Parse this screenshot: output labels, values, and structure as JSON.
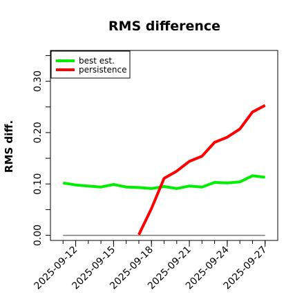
{
  "chart_data": {
    "type": "line",
    "title": "RMS difference",
    "xlabel": "",
    "ylabel": "RMS diff.",
    "x": [
      "2025-09-11",
      "2025-09-12",
      "2025-09-13",
      "2025-09-14",
      "2025-09-15",
      "2025-09-16",
      "2025-09-17",
      "2025-09-18",
      "2025-09-19",
      "2025-09-20",
      "2025-09-21",
      "2025-09-22",
      "2025-09-23",
      "2025-09-24",
      "2025-09-25",
      "2025-09-26",
      "2025-09-27"
    ],
    "xticks": [
      "2025-09-12",
      "2025-09-15",
      "2025-09-18",
      "2025-09-21",
      "2025-09-24",
      "2025-09-27"
    ],
    "xlim": [
      "2025-09-10",
      "2025-09-28"
    ],
    "yticks": [
      0.0,
      0.1,
      0.2,
      0.3
    ],
    "yticks_minor": [
      0.05,
      0.15,
      0.25,
      0.35
    ],
    "ylim": [
      -0.01,
      0.36
    ],
    "grid": false,
    "legend_position": "top-left",
    "reference_line": {
      "value": 0.0,
      "color": "#777777"
    },
    "series": [
      {
        "name": "best est.",
        "color": "#00ee00",
        "values": [
          0.102,
          0.098,
          0.096,
          0.094,
          0.099,
          0.094,
          0.093,
          0.091,
          0.095,
          0.091,
          0.096,
          0.094,
          0.103,
          0.102,
          0.104,
          0.116,
          0.113
        ]
      },
      {
        "name": "persistence",
        "color": "#ff0000",
        "values": [
          null,
          null,
          null,
          null,
          null,
          null,
          0.001,
          0.052,
          0.111,
          0.125,
          0.144,
          0.154,
          0.181,
          0.191,
          0.207,
          0.24,
          0.253
        ]
      }
    ]
  }
}
